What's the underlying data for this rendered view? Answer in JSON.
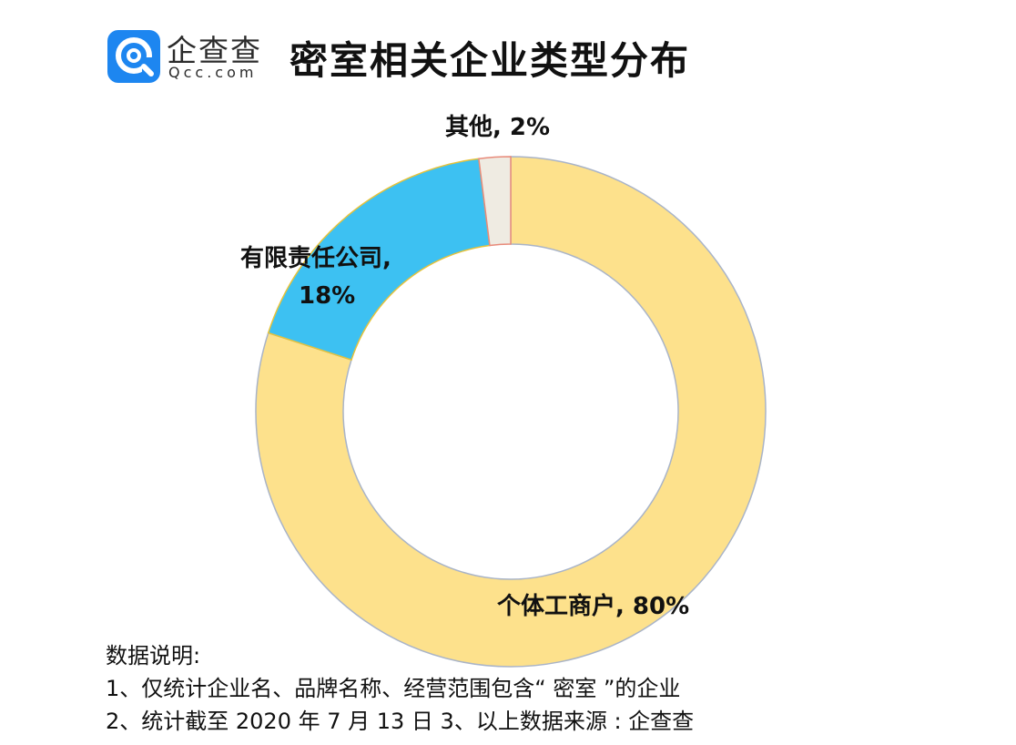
{
  "logo": {
    "cn_text": "企查查",
    "en_text": "Qcc.com",
    "brand_color": "#1d86f0"
  },
  "title": "密室相关企业类型分布",
  "chart_data": {
    "type": "pie",
    "donut": true,
    "title": "密室相关企业类型分布",
    "slices": [
      {
        "label": "个体工商户",
        "value": 80,
        "display": "80%",
        "color": "#fde18c",
        "edge": "#a9b4c8"
      },
      {
        "label": "有限责任公司",
        "value": 18,
        "display": "18%",
        "color": "#3dc1f2",
        "edge": "#e6c23a"
      },
      {
        "label": "其他",
        "value": 2,
        "display": "2%",
        "color": "#efebe2",
        "edge": "#e88a7a"
      }
    ]
  },
  "labels": {
    "other": "其他, 2%",
    "llc_line1": "有限责任公司,",
    "llc_line2": "18%",
    "individual": "个体工商户, 80%"
  },
  "notes": {
    "heading": "数据说明:",
    "line1": "1、仅统计企业名、品牌名称、经营范围包含“ 密室 ”的企业",
    "line2": "2、统计截至 2020 年 7 月 13 日    3、以上数据来源 : 企查查"
  }
}
